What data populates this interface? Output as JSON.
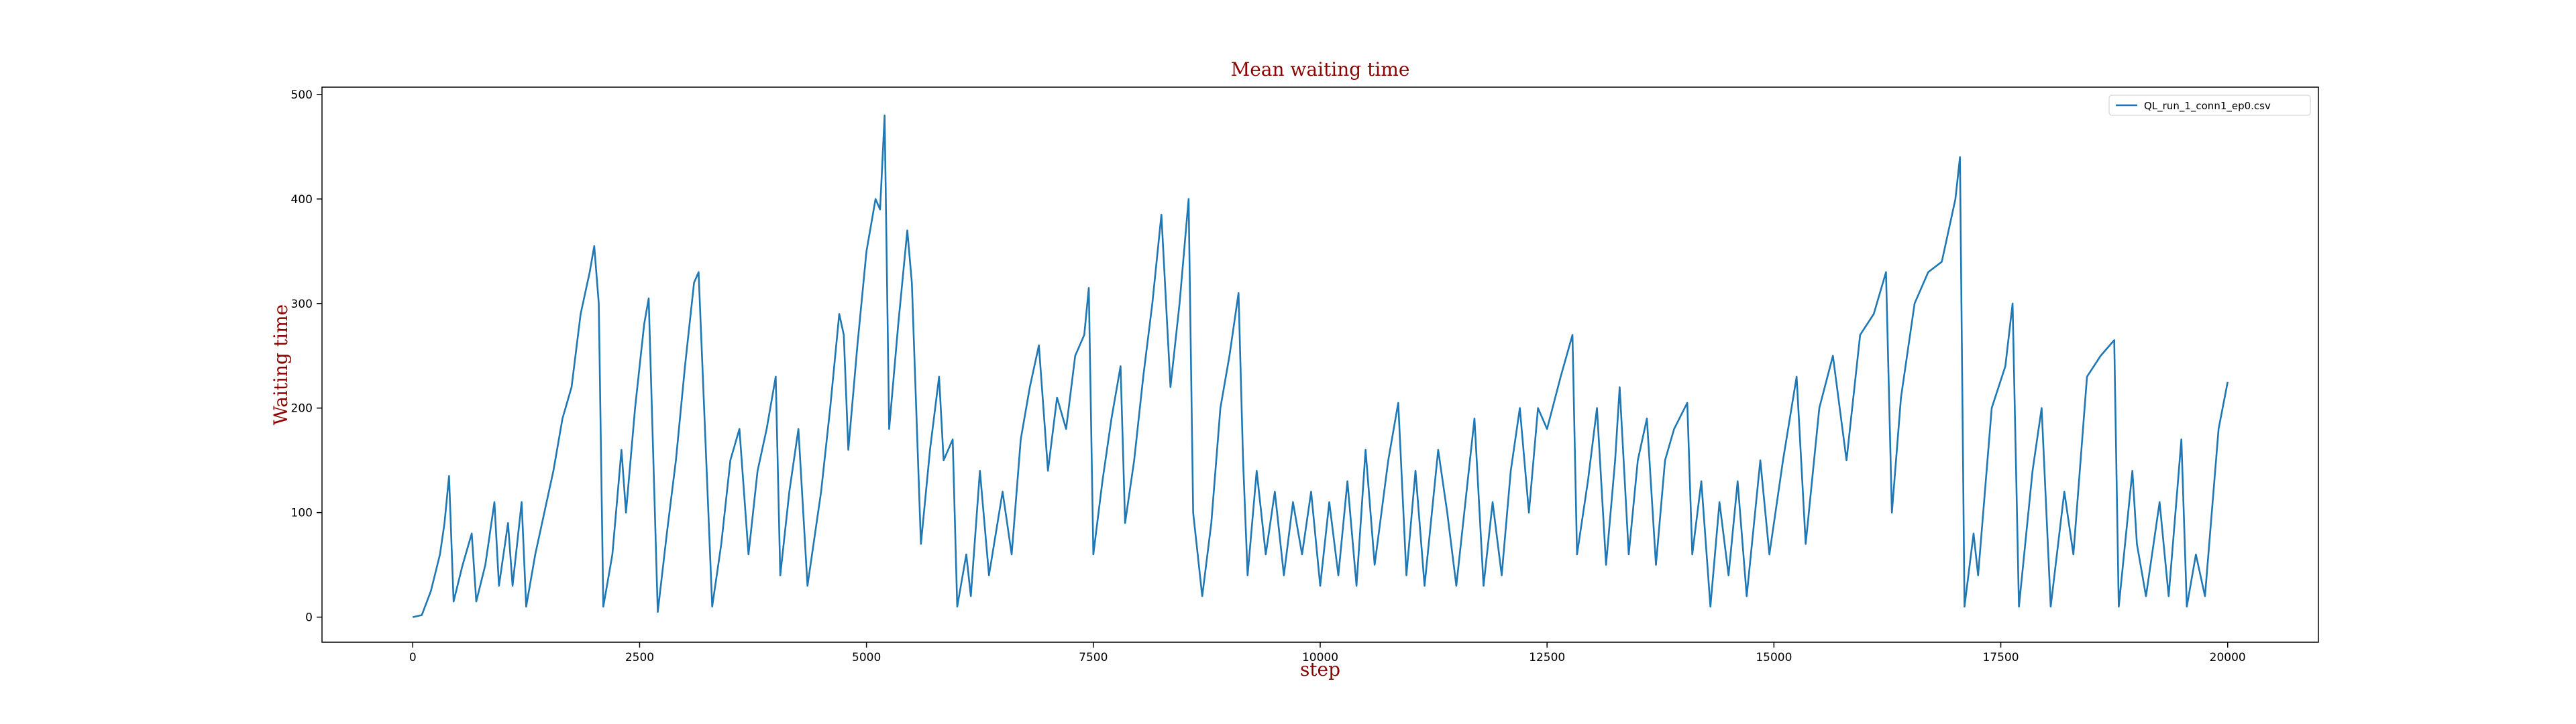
{
  "chart_data": {
    "type": "line",
    "title": "Mean waiting time",
    "xlabel": "step",
    "ylabel": "Waiting time",
    "x": [
      0,
      100,
      200,
      300,
      350,
      400,
      450,
      550,
      650,
      700,
      800,
      900,
      950,
      1050,
      1100,
      1200,
      1250,
      1350,
      1450,
      1550,
      1650,
      1750,
      1850,
      1950,
      2000,
      2050,
      2100,
      2200,
      2300,
      2350,
      2450,
      2550,
      2600,
      2700,
      2800,
      2900,
      3000,
      3100,
      3150,
      3300,
      3400,
      3500,
      3600,
      3700,
      3800,
      3900,
      4000,
      4050,
      4150,
      4250,
      4350,
      4500,
      4600,
      4700,
      4750,
      4800,
      4900,
      5000,
      5100,
      5150,
      5200,
      5250,
      5350,
      5450,
      5500,
      5600,
      5700,
      5800,
      5850,
      5950,
      6000,
      6100,
      6150,
      6250,
      6350,
      6500,
      6600,
      6700,
      6800,
      6900,
      6950,
      7000,
      7100,
      7200,
      7300,
      7400,
      7450,
      7500,
      7600,
      7700,
      7800,
      7850,
      7950,
      8050,
      8150,
      8250,
      8350,
      8450,
      8550,
      8600,
      8700,
      8800,
      8900,
      9000,
      9100,
      9150,
      9200,
      9300,
      9400,
      9500,
      9600,
      9700,
      9800,
      9900,
      10000,
      10100,
      10200,
      10300,
      10400,
      10500,
      10600,
      10750,
      10860,
      10950,
      11050,
      11150,
      11300,
      11400,
      11500,
      11600,
      11700,
      11800,
      11900,
      12000,
      12100,
      12200,
      12300,
      12400,
      12500,
      12650,
      12780,
      12830,
      12950,
      13050,
      13150,
      13250,
      13300,
      13400,
      13500,
      13600,
      13700,
      13800,
      13900,
      14045,
      14100,
      14200,
      14300,
      14400,
      14500,
      14600,
      14700,
      14850,
      14950,
      15100,
      15250,
      15350,
      15500,
      15650,
      15800,
      15950,
      16100,
      16235,
      16300,
      16400,
      16550,
      16700,
      16850,
      17000,
      17050,
      17100,
      17200,
      17250,
      17400,
      17550,
      17630,
      17700,
      17850,
      17950,
      18050,
      18200,
      18300,
      18450,
      18600,
      18750,
      18800,
      18950,
      19000,
      19100,
      19250,
      19350,
      19490,
      19550,
      19650,
      19750,
      19900,
      20000
    ],
    "series": [
      {
        "name": "QL_run_1_conn1_ep0.csv",
        "color": "#1f77b4",
        "values": [
          0,
          2,
          25,
          60,
          90,
          135,
          15,
          50,
          80,
          15,
          50,
          110,
          30,
          90,
          30,
          110,
          10,
          60,
          100,
          140,
          190,
          220,
          290,
          330,
          355,
          300,
          10,
          60,
          160,
          100,
          200,
          280,
          305,
          5,
          80,
          150,
          240,
          320,
          330,
          10,
          70,
          150,
          180,
          60,
          140,
          180,
          230,
          40,
          120,
          180,
          30,
          120,
          200,
          290,
          270,
          160,
          260,
          350,
          400,
          390,
          480,
          180,
          280,
          370,
          320,
          70,
          160,
          230,
          150,
          170,
          10,
          60,
          20,
          140,
          40,
          120,
          60,
          170,
          220,
          260,
          200,
          140,
          210,
          180,
          250,
          270,
          315,
          60,
          130,
          190,
          240,
          90,
          150,
          230,
          300,
          385,
          220,
          300,
          400,
          100,
          20,
          90,
          200,
          250,
          310,
          150,
          40,
          140,
          60,
          120,
          40,
          110,
          60,
          120,
          30,
          110,
          40,
          130,
          30,
          160,
          50,
          150,
          205,
          40,
          140,
          30,
          160,
          100,
          30,
          110,
          190,
          30,
          110,
          40,
          140,
          200,
          100,
          200,
          180,
          230,
          270,
          60,
          130,
          200,
          50,
          150,
          220,
          60,
          150,
          190,
          50,
          150,
          180,
          205,
          60,
          130,
          10,
          110,
          40,
          130,
          20,
          150,
          60,
          150,
          230,
          70,
          200,
          250,
          150,
          270,
          290,
          330,
          100,
          210,
          300,
          330,
          340,
          400,
          440,
          10,
          80,
          40,
          200,
          240,
          300,
          10,
          140,
          200,
          10,
          120,
          60,
          230,
          250,
          265,
          10,
          140,
          70,
          20,
          110,
          20,
          170,
          10,
          60,
          20,
          180,
          225
        ]
      }
    ],
    "xlim": [
      -1000,
      21000
    ],
    "ylim": [
      -24,
      507
    ],
    "xticks": [
      0,
      2500,
      5000,
      7500,
      10000,
      12500,
      15000,
      17500,
      20000
    ],
    "yticks": [
      0,
      100,
      200,
      300,
      400,
      500
    ],
    "legend": "upper right"
  }
}
